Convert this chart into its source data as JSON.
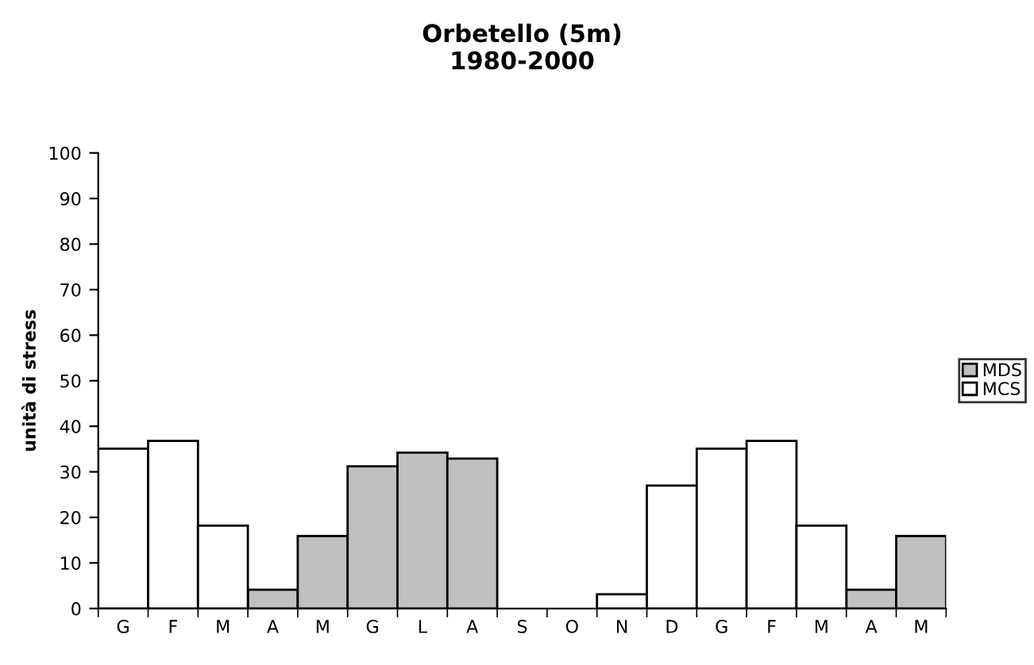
{
  "chart_data": {
    "type": "bar",
    "title": "Orbetello (5m)\n1980-2000",
    "ylabel": "unità di stress",
    "categories": [
      "G",
      "F",
      "M",
      "A",
      "M",
      "G",
      "L",
      "A",
      "S",
      "O",
      "N",
      "D",
      "G",
      "F",
      "M",
      "A",
      "M"
    ],
    "series": [
      {
        "name": "MDS",
        "color": "#c0c0c0",
        "values": [
          null,
          null,
          null,
          4.1,
          15.9,
          31.2,
          34.2,
          32.9,
          null,
          null,
          null,
          null,
          null,
          null,
          null,
          4.1,
          15.9
        ]
      },
      {
        "name": "MCS",
        "color": "#ffffff",
        "values": [
          35.1,
          36.8,
          18.2,
          null,
          null,
          null,
          null,
          null,
          null,
          null,
          3.1,
          27.0,
          35.1,
          36.8,
          18.2,
          null,
          null
        ]
      }
    ],
    "ylim": [
      0,
      100
    ],
    "yticks": [
      0,
      10,
      20,
      30,
      40,
      50,
      60,
      70,
      80,
      90,
      100
    ],
    "grid": false,
    "legend": "right"
  }
}
